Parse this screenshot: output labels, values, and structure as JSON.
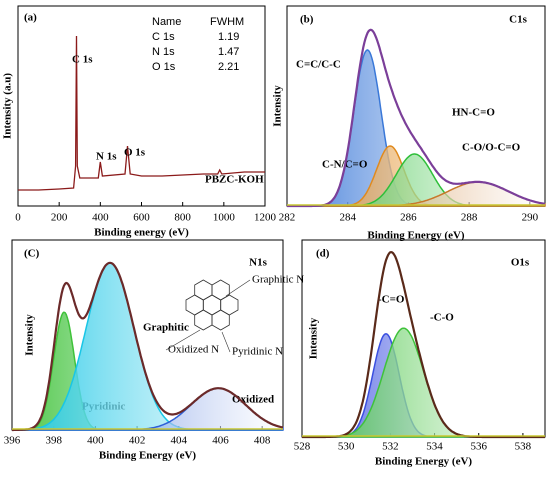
{
  "chart_data": [
    {
      "type": "line",
      "label": "(a)",
      "xlabel": "Binding energy (eV)",
      "ylabel": "Intensity (a.u)",
      "xlim": [
        0,
        1200
      ],
      "xticks": [
        0,
        200,
        400,
        600,
        800,
        1000,
        1200
      ],
      "ylim": [
        0,
        100
      ],
      "x": [
        0,
        100,
        200,
        270,
        280,
        284,
        288,
        300,
        390,
        400,
        410,
        520,
        532,
        545,
        600,
        700,
        800,
        900,
        970,
        980,
        990,
        1100,
        1200
      ],
      "values": [
        8,
        8,
        8.5,
        9,
        20,
        85,
        20,
        14,
        14,
        22,
        15,
        16,
        30,
        16,
        15,
        15,
        15.5,
        16,
        16,
        18,
        16,
        17,
        17
      ],
      "color": "#8b1a1a",
      "annotations": [
        "C 1s",
        "N 1s",
        "O 1s",
        "PBZC-KOH"
      ],
      "table": {
        "header": [
          "Name",
          "FWHM"
        ],
        "rows": [
          [
            "C 1s",
            1.19
          ],
          [
            "N 1s",
            1.47
          ],
          [
            "O 1s",
            2.21
          ]
        ]
      }
    },
    {
      "type": "fit",
      "label": "(b)",
      "title": "C1s",
      "xlabel": "Binding Energy (eV)",
      "ylabel": "Intensity",
      "xlim": [
        282,
        290.5
      ],
      "xticks": [
        282,
        284,
        286,
        288,
        290
      ],
      "ylim": [
        0,
        100
      ],
      "envelope_color": "#7b3f99",
      "peaks": [
        {
          "name": "C=C/C-C",
          "color": "#3a78d8",
          "center": 284.65,
          "height": 78,
          "width": 0.45
        },
        {
          "name": "C-N/C=O",
          "color": "#e08a1e",
          "center": 285.4,
          "height": 30,
          "width": 0.45
        },
        {
          "name": "HN-C=O",
          "color": "#2fbf3a",
          "center": 286.2,
          "height": 26,
          "width": 0.6
        },
        {
          "name": "C-O/O-C=O",
          "color": "#c8782a",
          "center": 288.3,
          "height": 12,
          "width": 1.0
        }
      ]
    },
    {
      "type": "fit",
      "label": "(C)",
      "title": "N1s",
      "xlabel": "Binding Energy (eV)",
      "ylabel": "Intensity",
      "xlim": [
        396,
        409
      ],
      "xticks": [
        396,
        398,
        400,
        402,
        404,
        406,
        408
      ],
      "ylim": [
        0,
        100
      ],
      "envelope_color": "#6b2a2a",
      "peaks": [
        {
          "name": "Pyridinic",
          "color": "#3fc23a",
          "center": 398.5,
          "height": 62,
          "width": 0.5
        },
        {
          "name": "Graphitic",
          "color": "#19c6e6",
          "center": 400.7,
          "height": 88,
          "width": 1.15
        },
        {
          "name": "Oxidized",
          "color": "#2e5fd6",
          "center": 405.9,
          "height": 22,
          "width": 1.3
        }
      ],
      "inset_labels": [
        "Graphitic N",
        "Oxidized N",
        "Pyridinic N"
      ]
    },
    {
      "type": "fit",
      "label": "(d)",
      "title": "O1s",
      "xlabel": "Binding Energy (eV)",
      "ylabel": "Intensity",
      "xlim": [
        528,
        539
      ],
      "xticks": [
        528,
        530,
        532,
        534,
        536,
        538
      ],
      "ylim": [
        0,
        105
      ],
      "envelope_color": "#5a2a1a",
      "peaks": [
        {
          "name": "-C=O",
          "color": "#3a4fe0",
          "center": 531.8,
          "height": 55,
          "width": 0.6
        },
        {
          "name": "-C-O",
          "color": "#3fc23a",
          "center": 532.6,
          "height": 58,
          "width": 0.9
        }
      ]
    }
  ]
}
